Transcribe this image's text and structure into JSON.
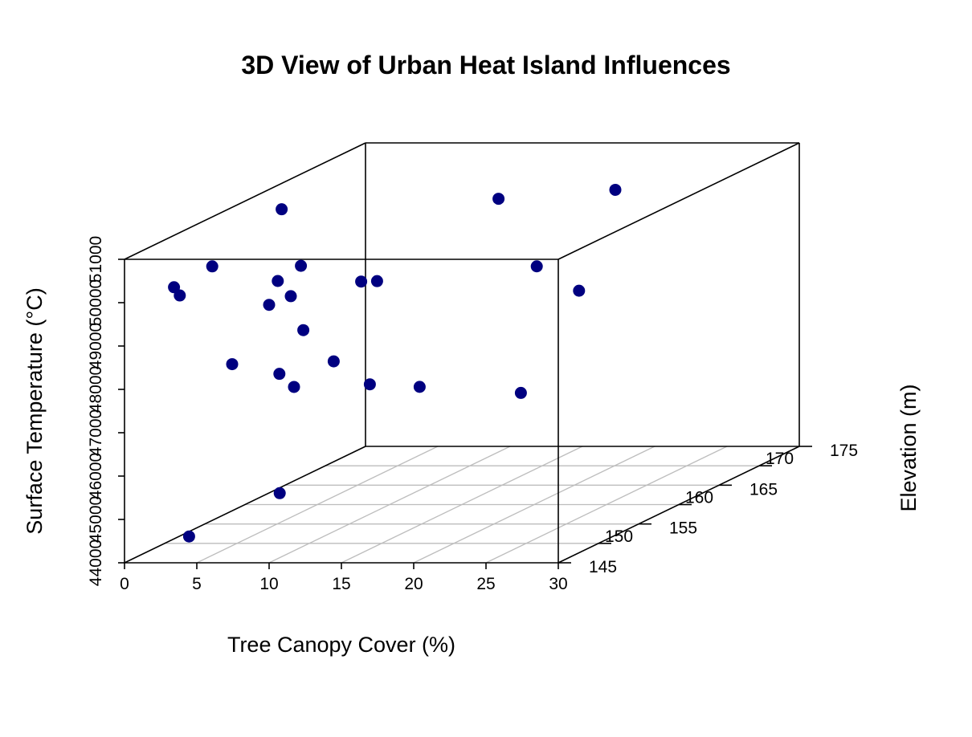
{
  "chart_data": {
    "type": "scatter3d",
    "title": "3D View of Urban Heat Island Influences",
    "xlabel": "Tree Canopy Cover (%)",
    "ylabel": "Elevation (m)",
    "zlabel": "Surface Temperature (°C)",
    "xlim": [
      0,
      30
    ],
    "ylim": [
      145,
      175
    ],
    "zlim": [
      44000,
      51000
    ],
    "x_ticks": [
      "0",
      "5",
      "10",
      "15",
      "20",
      "25",
      "30"
    ],
    "y_ticks": [
      "145",
      "150",
      "155",
      "160",
      "165",
      "170",
      "175"
    ],
    "z_ticks": [
      "44000",
      "45000",
      "46000",
      "47000",
      "48000",
      "49000",
      "50000",
      "51000"
    ],
    "grid": true,
    "point_color": "#000080",
    "points": [
      {
        "x": 3.2,
        "y": 145.4,
        "z": 50320
      },
      {
        "x": 3.6,
        "y": 145.4,
        "z": 50130
      },
      {
        "x": 3.8,
        "y": 146.2,
        "z": 44500
      },
      {
        "x": 3.7,
        "y": 157.9,
        "z": 51000
      },
      {
        "x": 5.9,
        "y": 145.3,
        "z": 50810
      },
      {
        "x": 7.0,
        "y": 145.8,
        "z": 48510
      },
      {
        "x": 8.9,
        "y": 148.3,
        "z": 45310
      },
      {
        "x": 10.0,
        "y": 145.0,
        "z": 49950
      },
      {
        "x": 10.6,
        "y": 145.0,
        "z": 50500
      },
      {
        "x": 10.6,
        "y": 145.2,
        "z": 48340
      },
      {
        "x": 11.5,
        "y": 145.0,
        "z": 50150
      },
      {
        "x": 11.5,
        "y": 145.4,
        "z": 48020
      },
      {
        "x": 12.2,
        "y": 145.0,
        "z": 50850
      },
      {
        "x": 12.2,
        "y": 145.3,
        "z": 49340
      },
      {
        "x": 14.3,
        "y": 145.3,
        "z": 48620
      },
      {
        "x": 16.2,
        "y": 145.3,
        "z": 50460
      },
      {
        "x": 17.3,
        "y": 145.3,
        "z": 50470
      },
      {
        "x": 16.8,
        "y": 145.3,
        "z": 48090
      },
      {
        "x": 20.3,
        "y": 145.2,
        "z": 48040
      },
      {
        "x": 17.2,
        "y": 160.6,
        "z": 51000
      },
      {
        "x": 27.3,
        "y": 145.2,
        "z": 47900
      },
      {
        "x": 28.4,
        "y": 145.2,
        "z": 50820
      },
      {
        "x": 29.6,
        "y": 148.3,
        "z": 49980
      },
      {
        "x": 24.0,
        "y": 162.9,
        "z": 51000
      }
    ]
  }
}
